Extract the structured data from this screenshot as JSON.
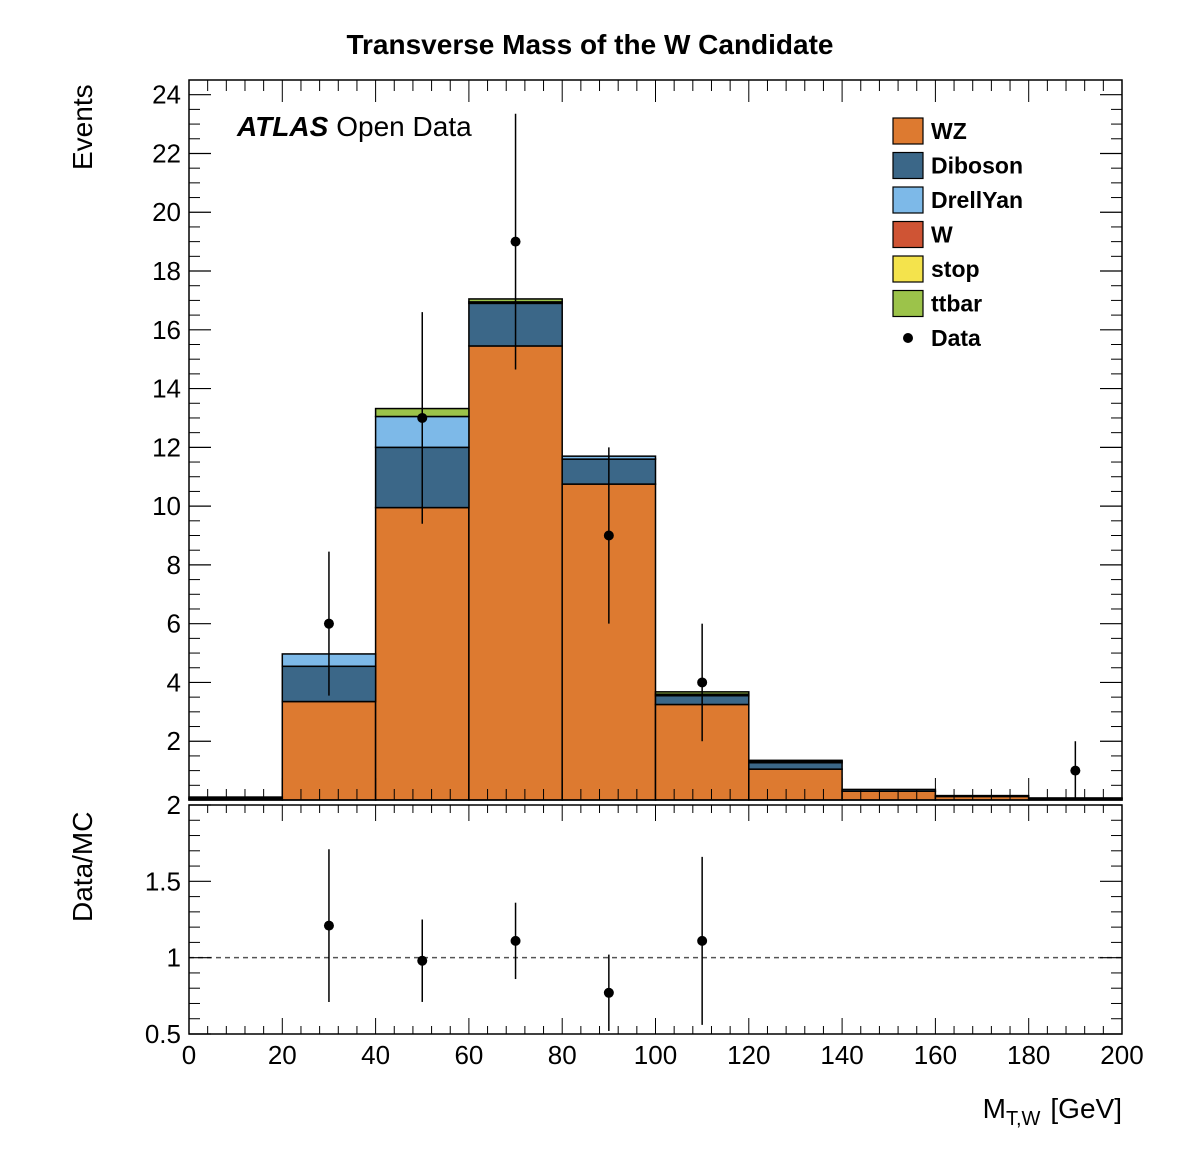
{
  "chart_data": [
    {
      "type": "bar",
      "stacked": true,
      "title": "Transverse Mass of the W Candidate",
      "ylabel": "Events",
      "xlim": [
        0,
        200
      ],
      "ylim": [
        0,
        24.5
      ],
      "bin_edges": [
        0,
        20,
        40,
        60,
        80,
        100,
        120,
        140,
        160,
        180,
        200
      ],
      "yticks": [
        "2",
        "4",
        "6",
        "8",
        "10",
        "12",
        "14",
        "16",
        "18",
        "20",
        "22",
        "24"
      ],
      "series": [
        {
          "name": "WZ",
          "color": "#dd7a30",
          "values": [
            0.05,
            3.35,
            9.95,
            15.45,
            10.75,
            3.25,
            1.05,
            0.3,
            0.12,
            0.05
          ]
        },
        {
          "name": "Diboson",
          "color": "#3b6788",
          "values": [
            0.0,
            1.2,
            2.05,
            1.45,
            0.85,
            0.3,
            0.22,
            0.06,
            0.03,
            0.02
          ]
        },
        {
          "name": "DrellYan",
          "color": "#7db9e8",
          "values": [
            0.0,
            0.42,
            1.05,
            0.05,
            0.1,
            0.05,
            0.05,
            0.0,
            0.0,
            0.0
          ]
        },
        {
          "name": "W",
          "color": "#cf5434",
          "values": [
            0.0,
            0.0,
            0.0,
            0.0,
            0.0,
            0.0,
            0.0,
            0.0,
            0.0,
            0.0
          ]
        },
        {
          "name": "stop",
          "color": "#f4e34c",
          "values": [
            0.0,
            0.0,
            0.0,
            0.0,
            0.0,
            0.0,
            0.0,
            0.0,
            0.0,
            0.0
          ]
        },
        {
          "name": "ttbar",
          "color": "#9cc34a",
          "values": [
            0.05,
            0.0,
            0.27,
            0.1,
            0.0,
            0.08,
            0.03,
            0.0,
            0.0,
            0.0
          ]
        }
      ],
      "data_points": {
        "name": "Data",
        "x": [
          30,
          50,
          70,
          90,
          110,
          190
        ],
        "y": [
          6,
          13,
          19,
          9,
          4,
          1
        ],
        "err_low": [
          2.45,
          3.6,
          4.35,
          3.0,
          2.0,
          1.0
        ],
        "err_high": [
          2.45,
          3.6,
          4.35,
          3.0,
          2.0,
          1.0
        ]
      },
      "annotation": {
        "bold": "ATLAS",
        "plain": "Open Data"
      },
      "legend": [
        "WZ",
        "Diboson",
        "DrellYan",
        "W",
        "stop",
        "ttbar",
        "Data"
      ],
      "legend_position": "top-right"
    },
    {
      "type": "scatter",
      "ylabel": "Data/MC",
      "xlabel_main": "M",
      "xlabel_sub": "T,W",
      "xlabel_unit": "[GeV]",
      "xlim": [
        0,
        200
      ],
      "ylim": [
        0.5,
        2
      ],
      "xticks": [
        "0",
        "20",
        "40",
        "60",
        "80",
        "100",
        "120",
        "140",
        "160",
        "180",
        "200"
      ],
      "yticks": [
        "0.5",
        "1",
        "1.5",
        "2"
      ],
      "reference_line": 1,
      "x": [
        30,
        50,
        70,
        90,
        110
      ],
      "y": [
        1.21,
        0.98,
        1.11,
        0.77,
        1.11
      ],
      "err_low": [
        0.5,
        0.27,
        0.25,
        0.25,
        0.55
      ],
      "err_high": [
        0.5,
        0.27,
        0.25,
        0.25,
        0.55
      ]
    }
  ]
}
